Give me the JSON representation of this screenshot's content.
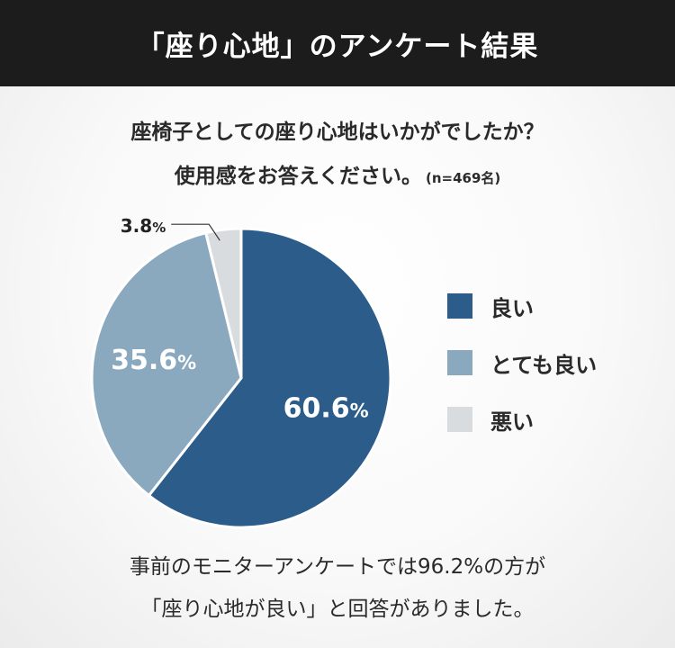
{
  "header": {
    "title": "「座り心地」のアンケート結果"
  },
  "question": {
    "line1": "座椅子としての座り心地はいかがでしたか？",
    "line2": "使用感をお答えください。",
    "sample": "(n=469名)"
  },
  "chart_data": {
    "type": "pie",
    "slices": [
      {
        "label": "良い",
        "value": 60.6,
        "display": "60.6",
        "color": "#2b5c8a"
      },
      {
        "label": "とても良い",
        "value": 35.6,
        "display": "35.6",
        "color": "#8aa9bf"
      },
      {
        "label": "悪い",
        "value": 3.8,
        "display": "3.8",
        "color": "#d8dcdf"
      }
    ],
    "unit": "%",
    "legend_position": "right"
  },
  "legend": {
    "items": [
      {
        "label": "良い",
        "color": "#2b5c8a"
      },
      {
        "label": "とても良い",
        "color": "#8aa9bf"
      },
      {
        "label": "悪い",
        "color": "#d8dcdf"
      }
    ]
  },
  "footer": {
    "line1": "事前のモニターアンケートでは96.2%の方が",
    "line2": "「座り心地が良い」と回答がありました。"
  }
}
